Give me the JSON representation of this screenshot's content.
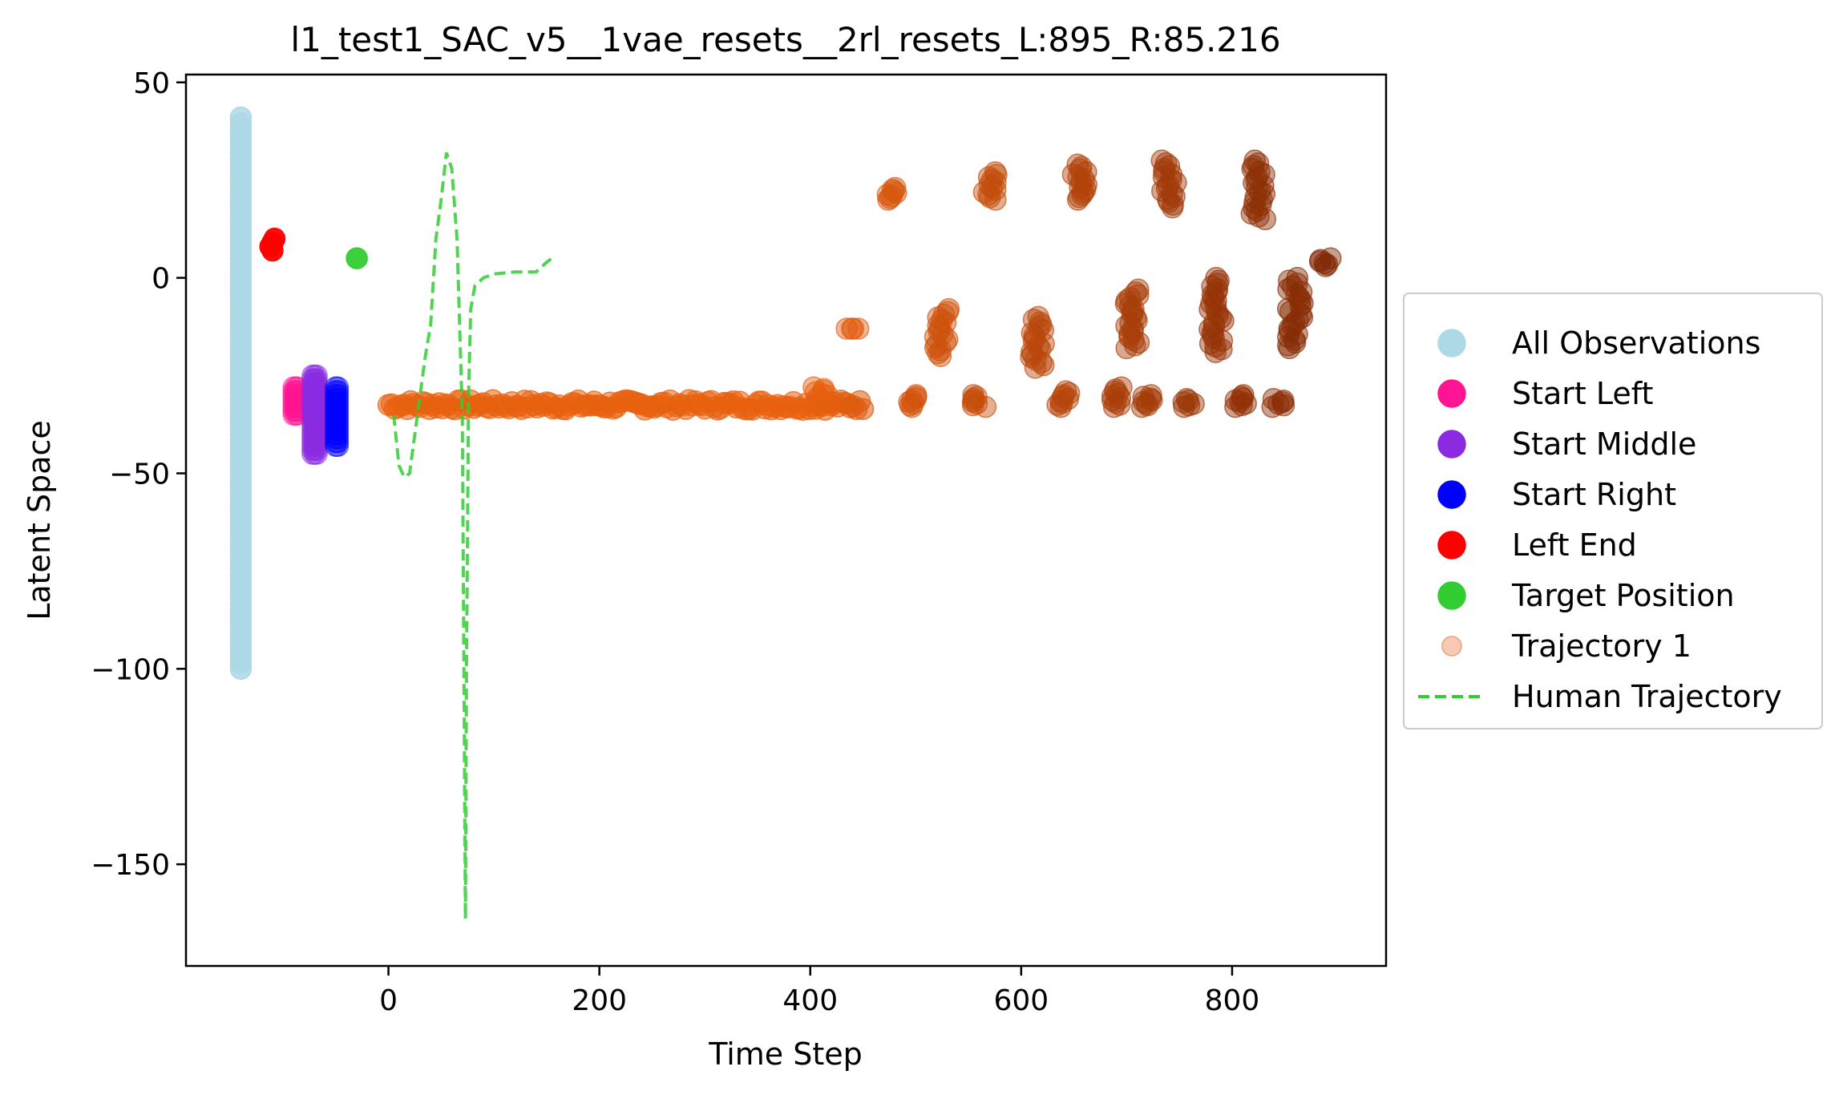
{
  "chart_data": {
    "type": "scatter",
    "title": "l1_test1_SAC_v5__1vae_resets__2rl_resets_L:895_R:85.216",
    "xlabel": "Time Step",
    "ylabel": "Latent Space",
    "xlim": [
      -192,
      946
    ],
    "ylim": [
      -176,
      52
    ],
    "xticks": [
      0,
      200,
      400,
      600,
      800
    ],
    "xtick_labels": [
      "0",
      "200",
      "400",
      "600",
      "800"
    ],
    "yticks": [
      50,
      0,
      -50,
      -100,
      -150
    ],
    "ytick_labels": [
      "50",
      "0",
      "−50",
      "−100",
      "−150"
    ],
    "grid": false,
    "legend": {
      "placement": "outside-right",
      "entries": [
        {
          "label": "All Observations",
          "marker": "circle",
          "color": "#add8e6"
        },
        {
          "label": "Start Left",
          "marker": "circle",
          "color": "#ff1493"
        },
        {
          "label": "Start Middle",
          "marker": "circle",
          "color": "#8a2be2"
        },
        {
          "label": "Start Right",
          "marker": "circle",
          "color": "#0000ff"
        },
        {
          "label": "Left End",
          "marker": "circle",
          "color": "#ff0000"
        },
        {
          "label": "Target Position",
          "marker": "circle",
          "color": "#32cd32"
        },
        {
          "label": "Trajectory 1",
          "marker": "circle-faded",
          "color": "#f4a582"
        },
        {
          "label": "Human Trajectory",
          "marker": "dashed-line",
          "color": "#32cd32"
        }
      ]
    },
    "series": [
      {
        "name": "All Observations",
        "color": "#add8e6",
        "x": -140,
        "y_range": [
          -100,
          41
        ],
        "y_step": 1.5
      },
      {
        "name": "Start Left",
        "color": "#ff1493",
        "x": [
          -90,
          -88,
          -86
        ],
        "y_range": [
          -35,
          -28
        ],
        "y_step": 1
      },
      {
        "name": "Start Middle",
        "color": "#8a2be2",
        "x": [
          -72,
          -70,
          -68
        ],
        "y_range": [
          -45,
          -25
        ],
        "y_step": 1
      },
      {
        "name": "Start Right",
        "color": "#0000ff",
        "x": [
          -50,
          -48
        ],
        "y_range": [
          -43,
          -28
        ],
        "y_step": 1
      },
      {
        "name": "Left End",
        "color": "#ff0000",
        "points": [
          [
            -110,
            7
          ],
          [
            -110,
            9
          ],
          [
            -108,
            10
          ],
          [
            -112,
            8
          ]
        ]
      },
      {
        "name": "Target Position",
        "color": "#32cd32",
        "points": [
          [
            -30,
            5
          ]
        ]
      },
      {
        "name": "Trajectory 1",
        "color_gradient": [
          "#e8610f",
          "#7f2704"
        ],
        "main_band": {
          "x_range": [
            0,
            450
          ],
          "y": -32.5
        },
        "clusters": [
          {
            "x": 480,
            "y": [
              20,
              23
            ]
          },
          {
            "x": 570,
            "y": [
              20,
              27
            ]
          },
          {
            "x": 655,
            "y": [
              20,
              29
            ]
          },
          {
            "x": 740,
            "y": [
              18,
              30
            ]
          },
          {
            "x": 825,
            "y": [
              15,
              30
            ]
          },
          {
            "x": 890,
            "y": [
              3,
              5
            ]
          },
          {
            "x": 440,
            "y": [
              -13,
              -13
            ]
          },
          {
            "x": 525,
            "y": [
              -20,
              -8
            ]
          },
          {
            "x": 615,
            "y": [
              -23,
              -10
            ]
          },
          {
            "x": 705,
            "y": [
              -18,
              -3
            ]
          },
          {
            "x": 785,
            "y": [
              -19,
              0
            ]
          },
          {
            "x": 860,
            "y": [
              -18,
              0
            ]
          },
          {
            "x": 410,
            "y": [
              -31,
              -28
            ]
          },
          {
            "x": 500,
            "y": [
              -33,
              -30
            ]
          },
          {
            "x": 560,
            "y": [
              -33,
              -30
            ]
          },
          {
            "x": 640,
            "y": [
              -33,
              -29
            ]
          },
          {
            "x": 690,
            "y": [
              -33,
              -28
            ]
          },
          {
            "x": 720,
            "y": [
              -33,
              -30
            ]
          },
          {
            "x": 760,
            "y": [
              -33,
              -31
            ]
          },
          {
            "x": 810,
            "y": [
              -33,
              -30
            ]
          },
          {
            "x": 845,
            "y": [
              -33,
              -31
            ]
          }
        ]
      },
      {
        "name": "Human Trajectory",
        "color": "#32cd32",
        "style": "dashed",
        "points": [
          [
            5,
            -35
          ],
          [
            10,
            -48
          ],
          [
            15,
            -51
          ],
          [
            20,
            -50
          ],
          [
            25,
            -40
          ],
          [
            30,
            -30
          ],
          [
            35,
            -20
          ],
          [
            40,
            -12
          ],
          [
            45,
            10
          ],
          [
            50,
            20
          ],
          [
            55,
            32
          ],
          [
            60,
            28
          ],
          [
            65,
            10
          ],
          [
            70,
            -35
          ],
          [
            72,
            -120
          ],
          [
            73,
            -164
          ],
          [
            74,
            -100
          ],
          [
            76,
            -30
          ],
          [
            78,
            -8
          ],
          [
            82,
            -2
          ],
          [
            90,
            0
          ],
          [
            100,
            1
          ],
          [
            120,
            1.5
          ],
          [
            140,
            1.5
          ],
          [
            150,
            4
          ],
          [
            155,
            5
          ]
        ]
      }
    ]
  }
}
